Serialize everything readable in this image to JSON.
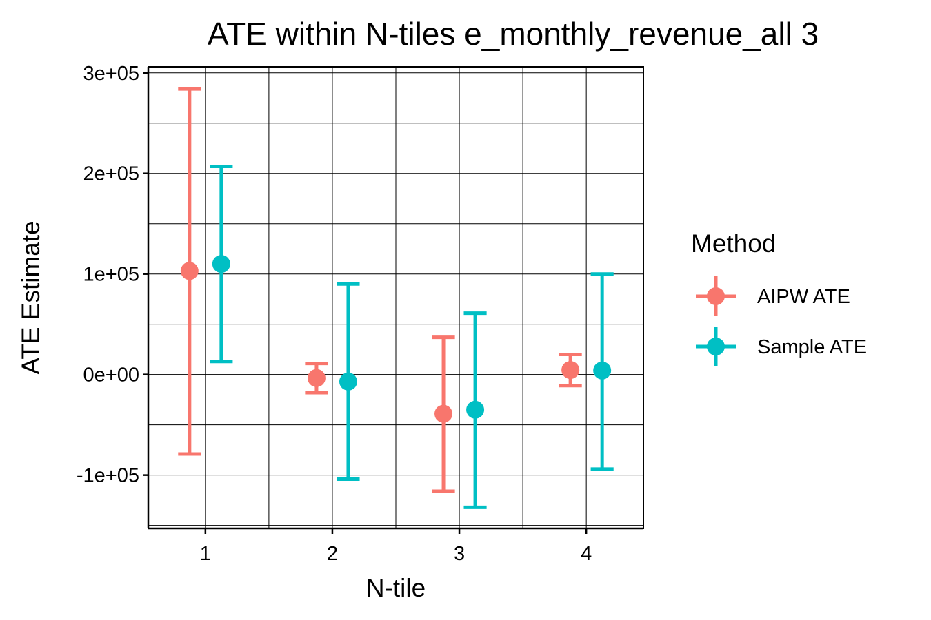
{
  "chart_data": {
    "type": "errorbar",
    "title": "ATE within N-tiles e_monthly_revenue_all 3",
    "xlabel": "N-tile",
    "ylabel": "ATE Estimate",
    "categories": [
      "1",
      "2",
      "3",
      "4"
    ],
    "x_ticks": [
      "1",
      "2",
      "3",
      "4"
    ],
    "y_ticks": [
      {
        "value": -100000,
        "label": "-1e+05"
      },
      {
        "value": 0,
        "label": "0e+00"
      },
      {
        "value": 100000,
        "label": "1e+05"
      },
      {
        "value": 200000,
        "label": "2e+05"
      },
      {
        "value": 300000,
        "label": "3e+05"
      }
    ],
    "xlim": [
      0.55,
      4.45
    ],
    "ylim": [
      -153000,
      306000
    ],
    "grid": true,
    "legend": {
      "title": "Method",
      "position": "right"
    },
    "series": [
      {
        "name": "AIPW ATE",
        "color": "#F8766D",
        "estimate": [
          103000,
          -3500,
          -39000,
          4500
        ],
        "lower": [
          -79000,
          -18000,
          -116000,
          -11000
        ],
        "upper": [
          284000,
          11000,
          37000,
          20000
        ]
      },
      {
        "name": "Sample ATE",
        "color": "#00BFC4",
        "estimate": [
          110000,
          -7000,
          -35000,
          4000
        ],
        "lower": [
          13000,
          -104000,
          -132000,
          -94000
        ],
        "upper": [
          207000,
          90000,
          61000,
          100000
        ]
      }
    ]
  }
}
